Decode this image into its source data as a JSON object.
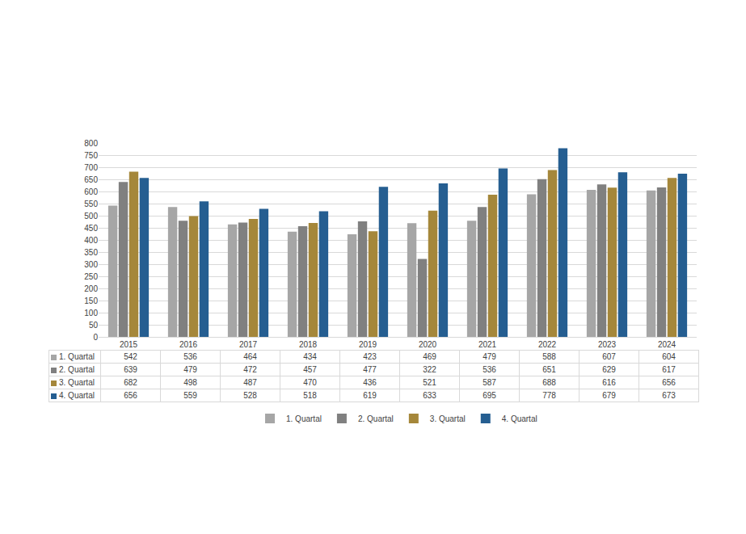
{
  "chart_data": {
    "type": "bar",
    "categories": [
      "2015",
      "2016",
      "2017",
      "2018",
      "2019",
      "2020",
      "2021",
      "2022",
      "2023",
      "2024"
    ],
    "series": [
      {
        "name": "1. Quartal",
        "color": "#a6a6a6",
        "values": [
          542,
          536,
          464,
          434,
          423,
          469,
          479,
          588,
          607,
          604
        ]
      },
      {
        "name": "2. Quartal",
        "color": "#808080",
        "values": [
          639,
          479,
          472,
          457,
          477,
          322,
          536,
          651,
          629,
          617
        ]
      },
      {
        "name": "3. Quartal",
        "color": "#a5873a",
        "values": [
          682,
          498,
          487,
          470,
          436,
          521,
          587,
          688,
          616,
          656
        ]
      },
      {
        "name": "4. Quartal",
        "color": "#255e91",
        "values": [
          656,
          559,
          528,
          518,
          619,
          633,
          695,
          778,
          679,
          673
        ]
      }
    ],
    "ylim": [
      0,
      800
    ],
    "yticks": [
      0,
      50,
      100,
      150,
      200,
      250,
      300,
      350,
      400,
      450,
      500,
      550,
      600,
      650,
      700,
      750,
      800
    ],
    "grid": true,
    "legend": "bottom"
  }
}
